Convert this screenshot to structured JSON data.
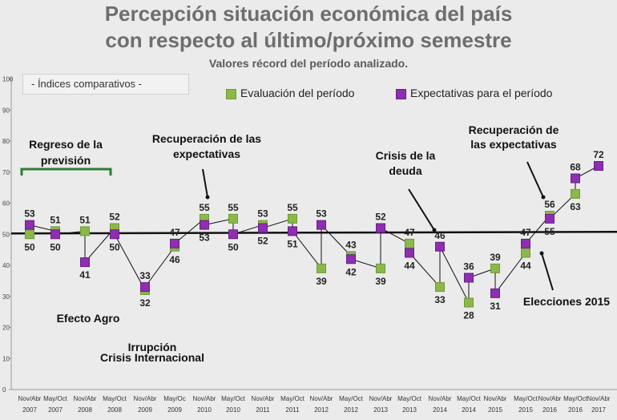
{
  "header": {
    "title_line1": "Percepción situación económica del país",
    "title_line2": "con respecto al último/próximo semestre",
    "subtitle": "Valores récord del período analizado.",
    "index_label": "- Índices comparativos -"
  },
  "legend": {
    "evaluation": "Evaluación del período",
    "expectations": "Expectativas para el período"
  },
  "colors": {
    "evaluation": "#8cb84a",
    "expectations": "#8e2eb0",
    "line": "#111111"
  },
  "annotations": {
    "a1": "Regreso de la",
    "a2": "previsión",
    "a3": "Recuperación de las",
    "a4": "expectativas",
    "a5": "Crisis de la",
    "a6": "deuda",
    "a7": "Recuperación de",
    "a8": "las expectativas",
    "a9": "Efecto Agro",
    "a10": "Irrupción",
    "a11": "Crisis Internacional",
    "a12": "Elecciones 2015"
  },
  "chart_data": {
    "type": "line",
    "title": "Percepción situación económica del país con respecto al último/próximo semestre",
    "ylim": [
      0,
      100
    ],
    "yticks": [
      0,
      10,
      20,
      30,
      40,
      50,
      60,
      70,
      80,
      90,
      100
    ],
    "categories": [
      "Nov/Abr 2007",
      "May/Oct 2007",
      "Nov/Abr 2008",
      "May/Oct 2008",
      "Nov/Abr 2009",
      "May/Oc 2009",
      "Nov/Abr 2010",
      "May/Oct 2010",
      "Nov/Abr 2011",
      "May/Oct 2011",
      "Nov/Abr 2012",
      "May/Oct 2012",
      "Nov/Abr 2013",
      "May/Oct 2013",
      "Nov/Abr 2014",
      "May/Oct 2014",
      "Nov/Abr 2015",
      "May/Oct 2015",
      "Nov/Abr 2016",
      "May/Oct 2016",
      "Nov/Abr 2017"
    ],
    "series": [
      {
        "name": "Evaluación del período",
        "values": [
          50,
          51,
          51,
          52,
          32,
          46,
          55,
          55,
          53,
          55,
          39,
          43,
          39,
          47,
          33,
          28,
          39,
          44,
          56,
          63,
          null
        ]
      },
      {
        "name": "Expectativas para el período",
        "values": [
          53,
          50,
          41,
          50,
          33,
          47,
          53,
          50,
          52,
          51,
          53,
          42,
          52,
          44,
          46,
          36,
          31,
          47,
          55,
          68,
          72
        ]
      }
    ],
    "reference_line": 50
  }
}
